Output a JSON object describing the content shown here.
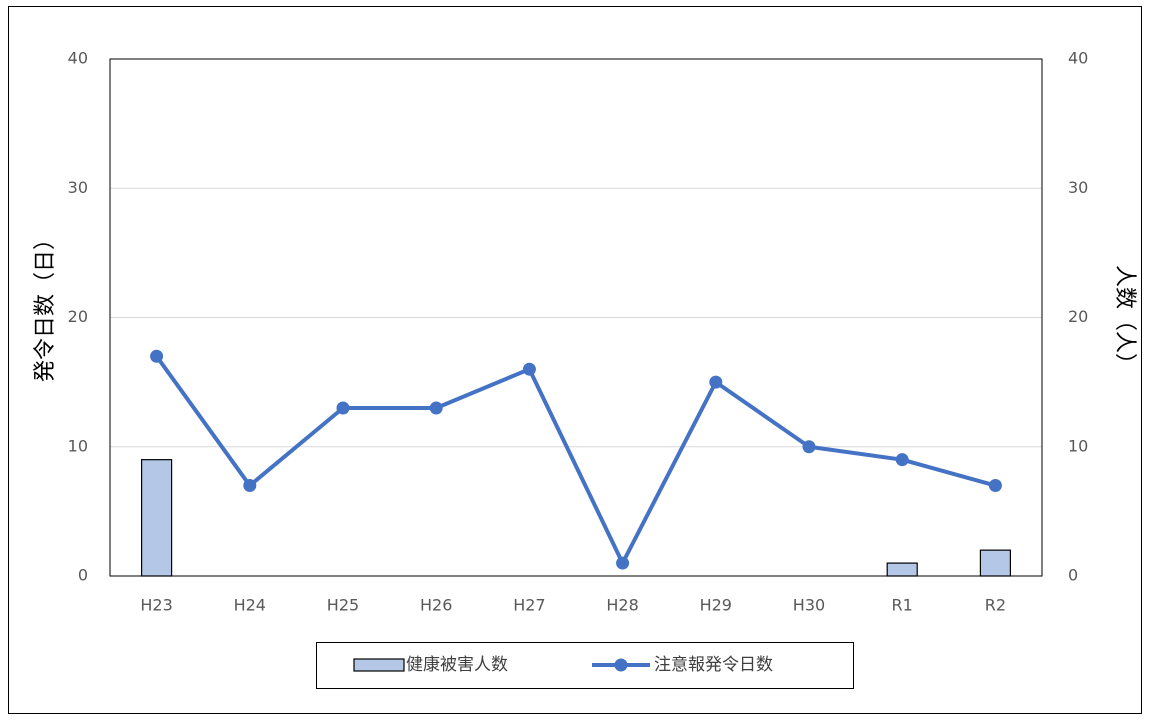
{
  "chart_data": {
    "type": "bar-line",
    "categories": [
      "H23",
      "H24",
      "H25",
      "H26",
      "H27",
      "H28",
      "H29",
      "H30",
      "R1",
      "R2"
    ],
    "y_label": "発令日数（日）",
    "y2_label": "人数（人）",
    "ylim": [
      0,
      40
    ],
    "yticks": [
      0,
      10,
      20,
      30,
      40
    ],
    "y2lim": [
      0,
      40
    ],
    "y2ticks": [
      0,
      10,
      20,
      30,
      40
    ],
    "grid": true,
    "legend": "bottom",
    "series": [
      {
        "name": "健康被害人数",
        "type": "bar",
        "axis": "y2",
        "color": "#b4c7e7",
        "values": [
          9,
          0,
          0,
          0,
          0,
          0,
          0,
          0,
          1,
          2
        ]
      },
      {
        "name": "注意報発令日数",
        "type": "line",
        "color": "#4472c4",
        "values": [
          17,
          7,
          13,
          13,
          16,
          1,
          15,
          10,
          9,
          7
        ]
      }
    ]
  }
}
